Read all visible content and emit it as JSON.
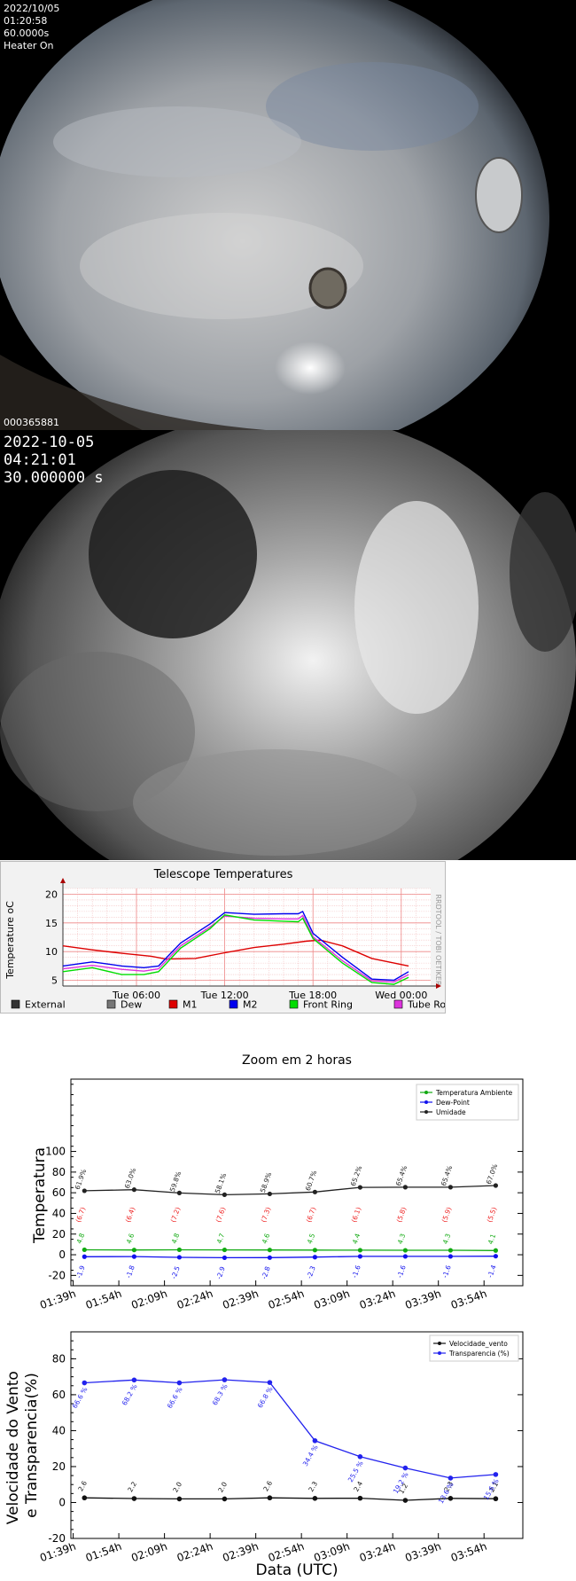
{
  "camera1": {
    "date": "2022/10/05",
    "time": "01:20:58",
    "exposure": "60.0000s",
    "heater": "Heater On",
    "frame_id": "000365881"
  },
  "camera2": {
    "date": "2022-10-05",
    "time": "04:21:01",
    "exposure": "30.000000 s"
  },
  "chart_data": [
    {
      "type": "line",
      "title": "Telescope Temperatures",
      "ylabel": "Temperature oC",
      "side_label": "RRDTOOL / TOBI OETIKER",
      "ylim": [
        4,
        21
      ],
      "y_ticks": [
        5,
        10,
        15,
        20
      ],
      "x_ticks": [
        "Tue 06:00",
        "Tue 12:00",
        "Tue 18:00",
        "Wed 00:00"
      ],
      "x_range_hours": [
        1,
        26
      ],
      "x_tick_hours": [
        6,
        12,
        18,
        24
      ],
      "legend": [
        {
          "name": "External",
          "color": "#333333"
        },
        {
          "name": "Dew",
          "color": "#777777"
        },
        {
          "name": "M1",
          "color": "#dd0000"
        },
        {
          "name": "M2",
          "color": "#0000ee"
        },
        {
          "name": "Front Ring",
          "color": "#00dd00"
        },
        {
          "name": "Tube Rod",
          "color": "#dd33dd"
        }
      ],
      "series": [
        {
          "name": "M1",
          "color": "#dd0000",
          "x": [
            1,
            3,
            5,
            7,
            8,
            10,
            12,
            14,
            16,
            17.5,
            18.5,
            20,
            22,
            24.5
          ],
          "y": [
            11,
            10.3,
            9.7,
            9.2,
            8.7,
            8.8,
            9.8,
            10.7,
            11.3,
            11.8,
            12.0,
            11.0,
            8.8,
            7.5
          ]
        },
        {
          "name": "M2",
          "color": "#0000ee",
          "x": [
            1,
            3,
            5,
            6.5,
            7.5,
            9,
            11,
            12,
            14,
            16,
            17,
            17.3,
            18,
            20,
            22,
            23.5,
            24.5
          ],
          "y": [
            7.5,
            8.2,
            7.5,
            7.2,
            7.5,
            11.5,
            14.8,
            16.8,
            16.5,
            16.6,
            16.6,
            17.0,
            13.2,
            9.0,
            5.2,
            5.0,
            6.5
          ]
        },
        {
          "name": "Tube Rod",
          "color": "#dd33dd",
          "x": [
            1,
            3,
            5,
            6.5,
            7.5,
            9,
            11,
            12,
            14,
            16,
            17,
            17.3,
            18,
            20,
            22,
            23.5,
            24.5
          ],
          "y": [
            7.0,
            7.6,
            6.9,
            6.6,
            7.0,
            11.0,
            14.3,
            16.2,
            15.8,
            15.7,
            15.7,
            16.3,
            12.6,
            8.4,
            4.9,
            4.7,
            6.0
          ]
        },
        {
          "name": "Front Ring",
          "color": "#00dd00",
          "x": [
            1,
            3,
            5,
            6.5,
            7.5,
            9,
            11,
            12,
            14,
            16,
            17,
            17.3,
            18,
            20,
            22,
            23.5,
            24.5
          ],
          "y": [
            6.5,
            7.2,
            6.0,
            6.0,
            6.5,
            10.6,
            14.0,
            16.4,
            15.5,
            15.3,
            15.2,
            15.8,
            12.3,
            8.0,
            4.6,
            4.3,
            5.5
          ]
        }
      ]
    },
    {
      "type": "line",
      "title": "Zoom em 2 horas",
      "ylabel": "Temperatura",
      "ylim": [
        -30,
        170
      ],
      "y_ticks": [
        -20,
        0,
        20,
        40,
        60,
        80,
        100
      ],
      "categories": [
        "01:39h",
        "01:54h",
        "02:09h",
        "02:24h",
        "02:39h",
        "02:54h",
        "03:09h",
        "03:24h",
        "03:39h",
        "03:54h"
      ],
      "x_positions": [
        0.3,
        1.4,
        2.4,
        3.4,
        4.4,
        5.4,
        6.4,
        7.4,
        8.4,
        9.4
      ],
      "x_range": [
        0,
        10
      ],
      "legend_position": "top-right",
      "series": [
        {
          "name": "Temperatura Ambiente",
          "color": "#11aa11",
          "values": [
            4.8,
            4.6,
            4.8,
            4.7,
            4.6,
            4.5,
            4.4,
            4.3,
            4.3,
            4.1
          ],
          "labels": [
            "4.8",
            "4.6",
            "4.8",
            "4.7",
            "4.6",
            "4.5",
            "4.4",
            "4.3",
            "4.3",
            "4.1"
          ]
        },
        {
          "name": "Dew-Point",
          "color": "#1111ee",
          "values": [
            -1.9,
            -1.8,
            -2.5,
            -2.9,
            -2.8,
            -2.3,
            -1.6,
            -1.6,
            -1.6,
            -1.4
          ],
          "labels": [
            "-1.9",
            "-1.8",
            "-2.5",
            "-2.9",
            "-2.8",
            "-2.3",
            "-1.6",
            "-1.6",
            "-1.6",
            "-1.4"
          ]
        },
        {
          "name": "Umidade",
          "color": "#222222",
          "values": [
            61.9,
            63.0,
            59.8,
            58.1,
            58.9,
            60.7,
            65.2,
            65.4,
            65.4,
            67.0
          ],
          "labels": [
            "61.9%",
            "63.0%",
            "59.8%",
            "58.1%",
            "58.9%",
            "60.7%",
            "65.2%",
            "65.4%",
            "65.4%",
            "67.0%"
          ]
        }
      ],
      "spread_labels": [
        "(6.7)",
        "(6.4)",
        "(7.2)",
        "(7.6)",
        "(7.3)",
        "(6.7)",
        "(6.1)",
        "(5.8)",
        "(5.9)",
        "(5.5)"
      ],
      "spread_color": "#ee2222"
    },
    {
      "type": "line",
      "ylabel": "Velocidade do Vento\ne Transparencia(%)",
      "xlabel": "Data (UTC)",
      "ylim": [
        -20,
        95
      ],
      "y_ticks": [
        -20,
        0,
        20,
        40,
        60,
        80
      ],
      "categories": [
        "01:39h",
        "01:54h",
        "02:09h",
        "02:24h",
        "02:39h",
        "02:54h",
        "03:09h",
        "03:24h",
        "03:39h",
        "03:54h"
      ],
      "legend_position": "top-right",
      "series": [
        {
          "name": "Velocidade_vento",
          "color": "#111111",
          "x": [
            0.3,
            1.4,
            2.4,
            3.4,
            4.4,
            5.4,
            6.4,
            7.4,
            8.4,
            9.4
          ],
          "values": [
            2.6,
            2.2,
            2.0,
            2.0,
            2.6,
            2.3,
            2.4,
            1.2,
            2.3,
            2.1
          ],
          "labels": [
            "2.6",
            "2.2",
            "2.0",
            "2.0",
            "2.6",
            "2.3",
            "2.4",
            "1.2",
            "2.3",
            "2.1"
          ]
        },
        {
          "name": "Transparencia (%)",
          "color": "#2222ee",
          "x": [
            0.3,
            1.4,
            2.4,
            3.4,
            4.4,
            5.4,
            6.4,
            7.4,
            8.4,
            9.4
          ],
          "values": [
            66.6,
            68.2,
            66.6,
            68.3,
            66.8,
            34.4,
            25.5,
            19.2,
            13.6,
            15.6
          ],
          "labels": [
            "66.6 %",
            "68.2 %",
            "66.6 %",
            "68.3 %",
            "66.8 %",
            "34.4 %",
            "25.5 %",
            "19.2 %",
            "13.6 %",
            "15.6 %"
          ]
        }
      ]
    }
  ]
}
